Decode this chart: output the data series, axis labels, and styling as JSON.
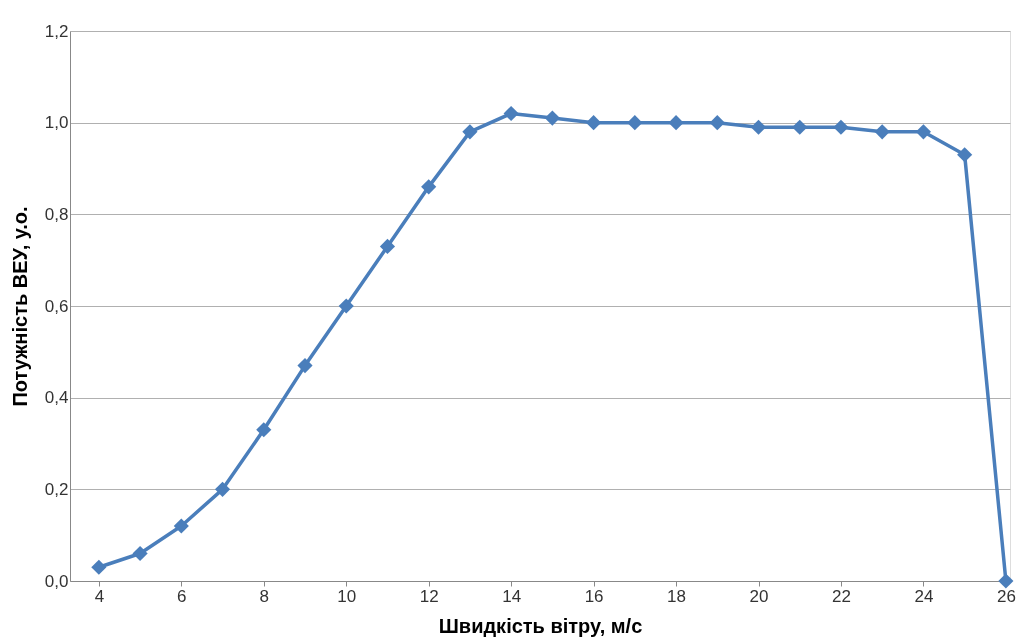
{
  "chart_data": {
    "type": "line",
    "xlabel": "Швидкість вітру, м/с",
    "ylabel": "Потужність ВЕУ, у.о.",
    "x": [
      4,
      5,
      6,
      7,
      8,
      9,
      10,
      11,
      12,
      13,
      14,
      15,
      16,
      17,
      18,
      19,
      20,
      21,
      22,
      23,
      24,
      25,
      26
    ],
    "series": [
      {
        "color": "#4a7ebb",
        "values": [
          0.03,
          0.06,
          0.12,
          0.2,
          0.33,
          0.47,
          0.6,
          0.73,
          0.86,
          0.98,
          1.02,
          1.01,
          1.0,
          1.0,
          1.0,
          1.0,
          0.99,
          0.99,
          0.99,
          0.98,
          0.98,
          0.93,
          0.0
        ]
      }
    ],
    "xlim": [
      3.3,
      26.1
    ],
    "xticks": [
      4,
      6,
      8,
      10,
      12,
      14,
      16,
      18,
      20,
      22,
      24,
      26
    ],
    "ylim": [
      0,
      1.2
    ],
    "yticks": [
      {
        "value": 0,
        "label": "0,0"
      },
      {
        "value": 0.2,
        "label": "0,2"
      },
      {
        "value": 0.4,
        "label": "0,4"
      },
      {
        "value": 0.6,
        "label": "0,6"
      },
      {
        "value": 0.8,
        "label": "0,8"
      },
      {
        "value": 1.0,
        "label": "1,0"
      },
      {
        "value": 1.2,
        "label": "1,2"
      }
    ],
    "grid": "y",
    "marker": "diamond",
    "line_style": "solid"
  }
}
